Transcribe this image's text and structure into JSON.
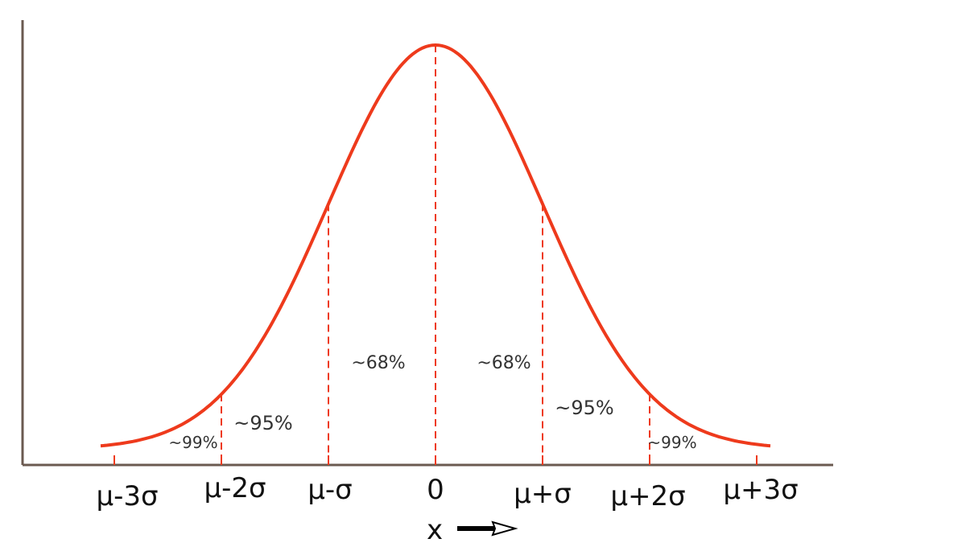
{
  "axis": {
    "x_label": "x",
    "tick_labels": [
      "μ-3σ",
      "μ-2σ",
      "μ-σ",
      "0",
      "μ+σ",
      "μ+2σ",
      "μ+3σ"
    ]
  },
  "annotations": [
    "~99%",
    "~95%",
    "~68%",
    "~68%",
    "~95%",
    "~99%"
  ]
}
